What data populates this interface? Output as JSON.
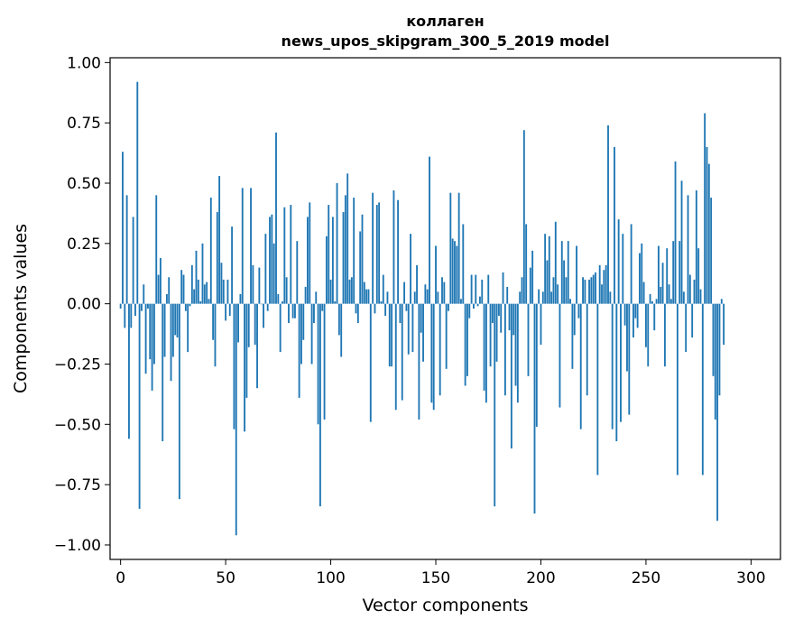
{
  "chart_data": {
    "type": "bar",
    "title": "коллаген",
    "subtitle": "news_upos_skipgram_300_5_2019 model",
    "xlabel": "Vector components",
    "ylabel": "Components values",
    "xlim": [
      -5,
      314
    ],
    "ylim": [
      -1.06,
      1.02
    ],
    "xticks": [
      0,
      50,
      100,
      150,
      200,
      250,
      300
    ],
    "yticks": [
      1.0,
      0.75,
      0.5,
      0.25,
      0.0,
      -0.25,
      -0.5,
      -0.75,
      -1.0
    ],
    "xtick_labels": [
      "0",
      "50",
      "100",
      "150",
      "200",
      "250",
      "300"
    ],
    "ytick_labels": [
      "1.00",
      "0.75",
      "0.50",
      "0.25",
      "0.00",
      "−0.25",
      "−0.50",
      "−0.75",
      "−1.00"
    ],
    "bar_color": "#1f77b4",
    "grid": false,
    "values": [
      -0.02,
      0.63,
      -0.1,
      0.45,
      -0.56,
      -0.1,
      0.36,
      -0.05,
      0.92,
      -0.85,
      -0.03,
      0.08,
      -0.29,
      -0.02,
      -0.23,
      -0.36,
      -0.25,
      0.45,
      0.12,
      0.19,
      -0.57,
      -0.22,
      0.04,
      0.11,
      -0.32,
      -0.22,
      -0.13,
      -0.14,
      -0.81,
      0.14,
      0.12,
      -0.03,
      -0.2,
      -0.01,
      0.16,
      0.06,
      0.22,
      0.1,
      0.01,
      0.25,
      0.08,
      0.09,
      0.02,
      0.44,
      -0.15,
      -0.26,
      0.38,
      0.53,
      0.17,
      0.1,
      -0.07,
      0.1,
      -0.05,
      0.32,
      -0.52,
      -0.96,
      -0.16,
      0.04,
      0.48,
      -0.53,
      -0.39,
      -0.18,
      0.48,
      0.16,
      -0.17,
      -0.35,
      0.15,
      0.0,
      -0.1,
      0.29,
      -0.03,
      0.36,
      0.37,
      0.25,
      0.71,
      0.04,
      -0.2,
      0.01,
      0.4,
      0.11,
      -0.08,
      0.41,
      -0.06,
      -0.06,
      0.26,
      -0.39,
      -0.25,
      -0.15,
      0.07,
      0.36,
      0.42,
      -0.25,
      -0.08,
      0.05,
      -0.5,
      -0.84,
      -0.03,
      -0.48,
      0.28,
      0.41,
      0.1,
      0.36,
      0.01,
      0.5,
      -0.13,
      -0.22,
      0.38,
      0.45,
      0.54,
      0.1,
      0.11,
      0.44,
      -0.04,
      -0.08,
      0.3,
      0.37,
      0.09,
      0.06,
      0.06,
      -0.49,
      0.46,
      -0.04,
      0.41,
      0.42,
      0.01,
      0.12,
      -0.05,
      0.05,
      -0.26,
      -0.26,
      0.47,
      -0.44,
      0.43,
      -0.08,
      -0.4,
      0.09,
      -0.03,
      -0.21,
      0.29,
      -0.2,
      0.05,
      0.16,
      -0.48,
      -0.12,
      -0.24,
      0.08,
      0.06,
      0.61,
      -0.41,
      -0.44,
      0.24,
      0.05,
      -0.38,
      0.11,
      0.09,
      -0.27,
      -0.03,
      0.46,
      0.27,
      0.26,
      0.24,
      0.46,
      0.02,
      0.33,
      -0.34,
      -0.3,
      -0.06,
      0.12,
      -0.02,
      0.12,
      -0.01,
      0.03,
      0.1,
      -0.36,
      -0.41,
      0.12,
      -0.26,
      -0.08,
      -0.84,
      -0.24,
      -0.05,
      -0.12,
      0.13,
      -0.38,
      0.07,
      -0.11,
      -0.6,
      -0.13,
      -0.34,
      -0.41,
      0.05,
      0.11,
      0.72,
      0.33,
      -0.3,
      0.15,
      0.22,
      -0.87,
      -0.51,
      0.06,
      -0.17,
      0.05,
      0.29,
      0.18,
      0.28,
      0.05,
      0.11,
      0.34,
      0.08,
      -0.43,
      0.26,
      0.18,
      0.11,
      0.26,
      0.02,
      -0.27,
      -0.13,
      0.24,
      -0.06,
      -0.52,
      0.11,
      0.1,
      -0.38,
      0.1,
      0.11,
      0.12,
      0.13,
      -0.71,
      0.16,
      0.08,
      0.14,
      0.16,
      0.74,
      0.05,
      -0.52,
      0.65,
      -0.57,
      0.35,
      -0.49,
      0.29,
      -0.09,
      -0.28,
      -0.46,
      0.33,
      -0.14,
      -0.06,
      -0.1,
      0.21,
      0.25,
      0.09,
      -0.18,
      -0.26,
      0.04,
      0.01,
      -0.11,
      0.02,
      0.24,
      0.07,
      0.17,
      -0.26,
      0.23,
      0.08,
      0.02,
      0.26,
      0.59,
      -0.71,
      0.26,
      0.51,
      0.05,
      -0.2,
      0.45,
      0.12,
      -0.14,
      0.1,
      0.47,
      0.23,
      0.06,
      -0.71,
      0.79,
      0.65,
      0.58,
      0.44,
      -0.3,
      -0.48,
      -0.9,
      -0.38,
      0.02,
      -0.17
    ]
  }
}
